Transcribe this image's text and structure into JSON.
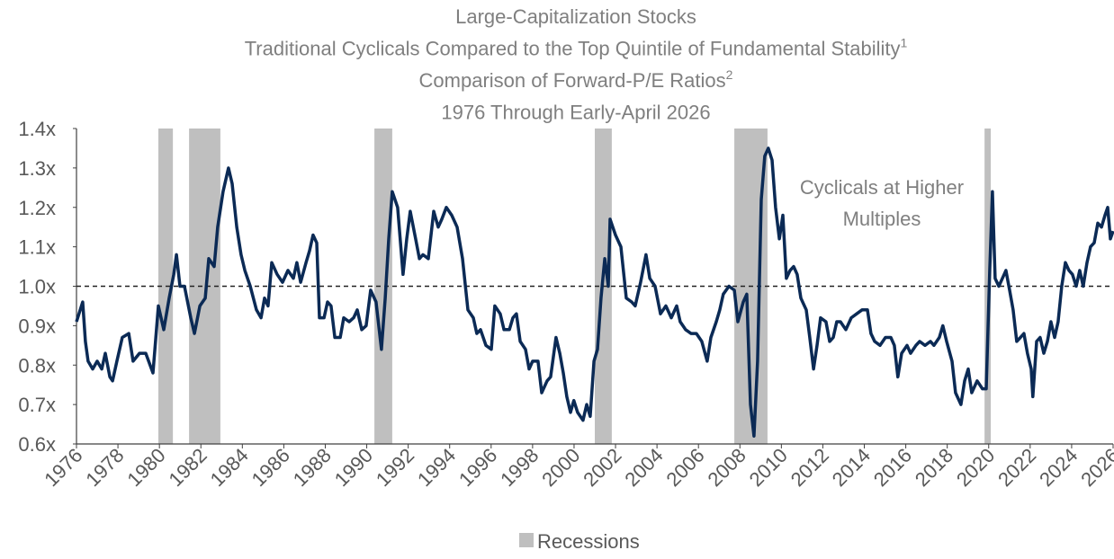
{
  "chart_data": {
    "type": "line",
    "title_lines": [
      {
        "text": "Large-Capitalization Stocks"
      },
      {
        "text": "Traditional Cyclicals Compared to the Top Quintile of Fundamental Stability",
        "sup": "1"
      },
      {
        "text": "Comparison of Forward-P/E Ratios",
        "sup": "2"
      },
      {
        "text": "1976 Through Early-April 2026"
      }
    ],
    "annotation": [
      "Cyclicals at Higher",
      "Multiples"
    ],
    "xlim": [
      1976,
      2026
    ],
    "xticks": [
      1976,
      1978,
      1980,
      1982,
      1984,
      1986,
      1988,
      1990,
      1992,
      1994,
      1996,
      1998,
      2000,
      2002,
      2004,
      2006,
      2008,
      2010,
      2012,
      2014,
      2016,
      2018,
      2020,
      2022,
      2024,
      2026
    ],
    "ylim": [
      0.6,
      1.4
    ],
    "yticks": [
      {
        "value": 0.6,
        "label": "0.6x"
      },
      {
        "value": 0.7,
        "label": "0.7x"
      },
      {
        "value": 0.8,
        "label": "0.8x"
      },
      {
        "value": 0.9,
        "label": "0.9x"
      },
      {
        "value": 1.0,
        "label": "1.0x"
      },
      {
        "value": 1.1,
        "label": "1.1x"
      },
      {
        "value": 1.2,
        "label": "1.2x"
      },
      {
        "value": 1.3,
        "label": "1.3x"
      },
      {
        "value": 1.4,
        "label": "1.4x"
      }
    ],
    "reference_line": 1.0,
    "recessions": {
      "name": "Recessions",
      "color": "#bfbfbf",
      "periods": [
        [
          1979.95,
          1980.65
        ],
        [
          1981.43,
          1982.94
        ],
        [
          1990.37,
          1991.23
        ],
        [
          2001.0,
          2001.82
        ],
        [
          2007.73,
          2009.33
        ],
        [
          2019.8,
          2020.1
        ]
      ]
    },
    "x": [
      1976.0,
      1976.3,
      1976.43,
      1976.56,
      1976.78,
      1977.0,
      1977.22,
      1977.39,
      1977.61,
      1977.74,
      1977.95,
      1978.21,
      1978.52,
      1978.73,
      1979.04,
      1979.34,
      1979.69,
      1979.95,
      1980.21,
      1980.47,
      1980.69,
      1980.82,
      1980.99,
      1981.21,
      1981.51,
      1981.69,
      1981.95,
      1982.21,
      1982.38,
      1982.64,
      1982.81,
      1983.07,
      1983.33,
      1983.51,
      1983.73,
      1983.94,
      1984.12,
      1984.38,
      1984.68,
      1984.9,
      1985.07,
      1985.24,
      1985.42,
      1985.68,
      1985.94,
      1986.2,
      1986.46,
      1986.63,
      1986.81,
      1987.07,
      1987.24,
      1987.41,
      1987.59,
      1987.72,
      1987.94,
      1988.11,
      1988.28,
      1988.46,
      1988.72,
      1988.89,
      1989.15,
      1989.37,
      1989.54,
      1989.76,
      1989.97,
      1990.19,
      1990.45,
      1990.71,
      1990.89,
      1991.06,
      1991.23,
      1991.49,
      1991.75,
      1991.93,
      1992.1,
      1992.36,
      1992.54,
      1992.71,
      1992.97,
      1993.23,
      1993.45,
      1993.62,
      1993.84,
      1994.1,
      1994.36,
      1994.62,
      1994.88,
      1995.14,
      1995.31,
      1995.49,
      1995.75,
      1996.01,
      1996.18,
      1996.44,
      1996.62,
      1996.88,
      1997.05,
      1997.22,
      1997.4,
      1997.66,
      1997.83,
      1998.0,
      1998.26,
      1998.44,
      1998.7,
      1998.87,
      1999.13,
      1999.31,
      1999.48,
      1999.65,
      1999.83,
      1999.99,
      2000.17,
      2000.43,
      2000.61,
      2000.78,
      2000.96,
      2001.13,
      2001.3,
      2001.48,
      2001.65,
      2001.74,
      2002.0,
      2002.26,
      2002.52,
      2002.78,
      2002.95,
      2003.21,
      2003.47,
      2003.65,
      2003.91,
      2004.17,
      2004.43,
      2004.69,
      2004.95,
      2005.12,
      2005.38,
      2005.64,
      2005.9,
      2006.16,
      2006.42,
      2006.6,
      2006.86,
      2007.03,
      2007.2,
      2007.47,
      2007.73,
      2007.9,
      2008.16,
      2008.33,
      2008.51,
      2008.68,
      2008.85,
      2009.03,
      2009.2,
      2009.37,
      2009.55,
      2009.72,
      2009.9,
      2010.07,
      2010.24,
      2010.42,
      2010.59,
      2010.76,
      2010.94,
      2011.2,
      2011.37,
      2011.55,
      2011.72,
      2011.89,
      2012.15,
      2012.33,
      2012.5,
      2012.67,
      2012.85,
      2013.11,
      2013.37,
      2013.63,
      2013.89,
      2014.15,
      2014.32,
      2014.5,
      2014.76,
      2015.02,
      2015.28,
      2015.45,
      2015.62,
      2015.8,
      2016.06,
      2016.23,
      2016.49,
      2016.67,
      2016.93,
      2017.19,
      2017.36,
      2017.62,
      2017.79,
      2017.97,
      2018.23,
      2018.4,
      2018.66,
      2018.84,
      2019.01,
      2019.18,
      2019.44,
      2019.7,
      2019.88,
      2020.05,
      2020.18,
      2020.31,
      2020.49,
      2020.66,
      2020.83,
      2021.01,
      2021.18,
      2021.35,
      2021.53,
      2021.7,
      2021.87,
      2022.05,
      2022.13,
      2022.31,
      2022.48,
      2022.66,
      2022.83,
      2023.0,
      2023.18,
      2023.35,
      2023.52,
      2023.7,
      2023.87,
      2024.04,
      2024.22,
      2024.39,
      2024.56,
      2024.74,
      2024.91,
      2025.09,
      2025.26,
      2025.44,
      2025.61,
      2025.74,
      2025.87,
      2026.0
    ],
    "series": [
      {
        "color": "#0b2a55",
        "values": [
          0.91,
          0.96,
          0.86,
          0.81,
          0.79,
          0.81,
          0.79,
          0.83,
          0.77,
          0.76,
          0.81,
          0.87,
          0.88,
          0.81,
          0.83,
          0.83,
          0.78,
          0.95,
          0.89,
          0.97,
          1.03,
          1.08,
          1.0,
          1.0,
          0.92,
          0.88,
          0.95,
          0.97,
          1.07,
          1.05,
          1.15,
          1.24,
          1.3,
          1.26,
          1.15,
          1.08,
          1.04,
          1.0,
          0.94,
          0.92,
          0.97,
          0.95,
          1.06,
          1.03,
          1.01,
          1.04,
          1.02,
          1.06,
          1.01,
          1.06,
          1.09,
          1.13,
          1.11,
          0.92,
          0.92,
          0.96,
          0.95,
          0.87,
          0.87,
          0.92,
          0.91,
          0.92,
          0.94,
          0.89,
          0.9,
          0.99,
          0.96,
          0.84,
          0.97,
          1.12,
          1.24,
          1.2,
          1.03,
          1.12,
          1.19,
          1.12,
          1.07,
          1.08,
          1.07,
          1.19,
          1.15,
          1.17,
          1.2,
          1.18,
          1.15,
          1.07,
          0.94,
          0.92,
          0.88,
          0.89,
          0.85,
          0.84,
          0.95,
          0.93,
          0.89,
          0.89,
          0.92,
          0.93,
          0.86,
          0.84,
          0.79,
          0.81,
          0.81,
          0.73,
          0.76,
          0.77,
          0.87,
          0.83,
          0.78,
          0.72,
          0.68,
          0.71,
          0.68,
          0.66,
          0.7,
          0.67,
          0.81,
          0.84,
          0.97,
          1.07,
          1.0,
          1.17,
          1.13,
          1.1,
          0.97,
          0.96,
          0.95,
          1.01,
          1.08,
          1.02,
          1.0,
          0.93,
          0.95,
          0.92,
          0.95,
          0.91,
          0.89,
          0.88,
          0.88,
          0.86,
          0.81,
          0.87,
          0.91,
          0.94,
          0.98,
          1.0,
          0.99,
          0.91,
          0.96,
          0.98,
          0.7,
          0.62,
          0.81,
          1.22,
          1.33,
          1.35,
          1.32,
          1.2,
          1.12,
          1.18,
          1.02,
          1.04,
          1.05,
          1.03,
          0.97,
          0.94,
          0.87,
          0.79,
          0.85,
          0.92,
          0.91,
          0.86,
          0.87,
          0.91,
          0.91,
          0.89,
          0.92,
          0.93,
          0.94,
          0.94,
          0.88,
          0.86,
          0.85,
          0.87,
          0.87,
          0.85,
          0.77,
          0.83,
          0.85,
          0.83,
          0.85,
          0.86,
          0.85,
          0.86,
          0.85,
          0.87,
          0.9,
          0.86,
          0.81,
          0.73,
          0.7,
          0.76,
          0.79,
          0.73,
          0.76,
          0.74,
          0.74,
          1.04,
          1.24,
          1.02,
          1.0,
          1.02,
          1.04,
          0.99,
          0.94,
          0.86,
          0.87,
          0.88,
          0.83,
          0.79,
          0.72,
          0.86,
          0.87,
          0.83,
          0.86,
          0.91,
          0.87,
          0.91,
          1.0,
          1.06,
          1.04,
          1.03,
          1.0,
          1.04,
          1.0,
          1.06,
          1.1,
          1.11,
          1.16,
          1.15,
          1.18,
          1.2,
          1.12,
          1.14
        ]
      }
    ]
  }
}
